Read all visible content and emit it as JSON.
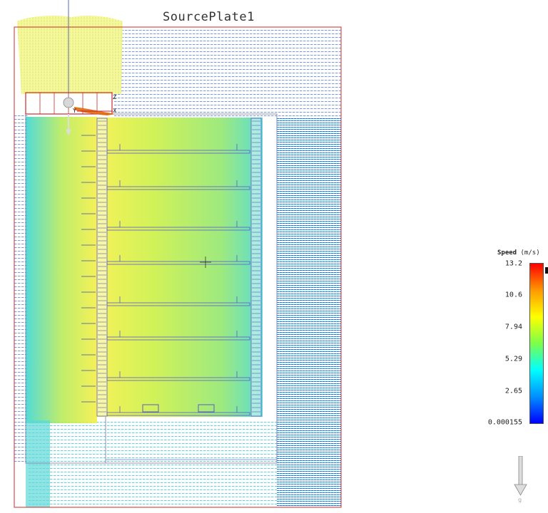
{
  "viewport": {
    "plate_title": "SourcePlate1"
  },
  "legend": {
    "title": "Speed",
    "units": "(m/s)",
    "ticks": [
      "13.2",
      "10.6",
      "7.94",
      "5.29",
      "2.65",
      "0.000155"
    ],
    "colors": [
      "#0000ff",
      "#0090ff",
      "#00ffff",
      "#7cff4a",
      "#ffff00",
      "#ff9900",
      "#ff0000"
    ]
  },
  "gravity": {
    "label": "g"
  },
  "scene": {
    "outline_color": "#cc2b2b",
    "panel_line_color": "#5a5ad0",
    "fan_color": "#e06a10"
  }
}
